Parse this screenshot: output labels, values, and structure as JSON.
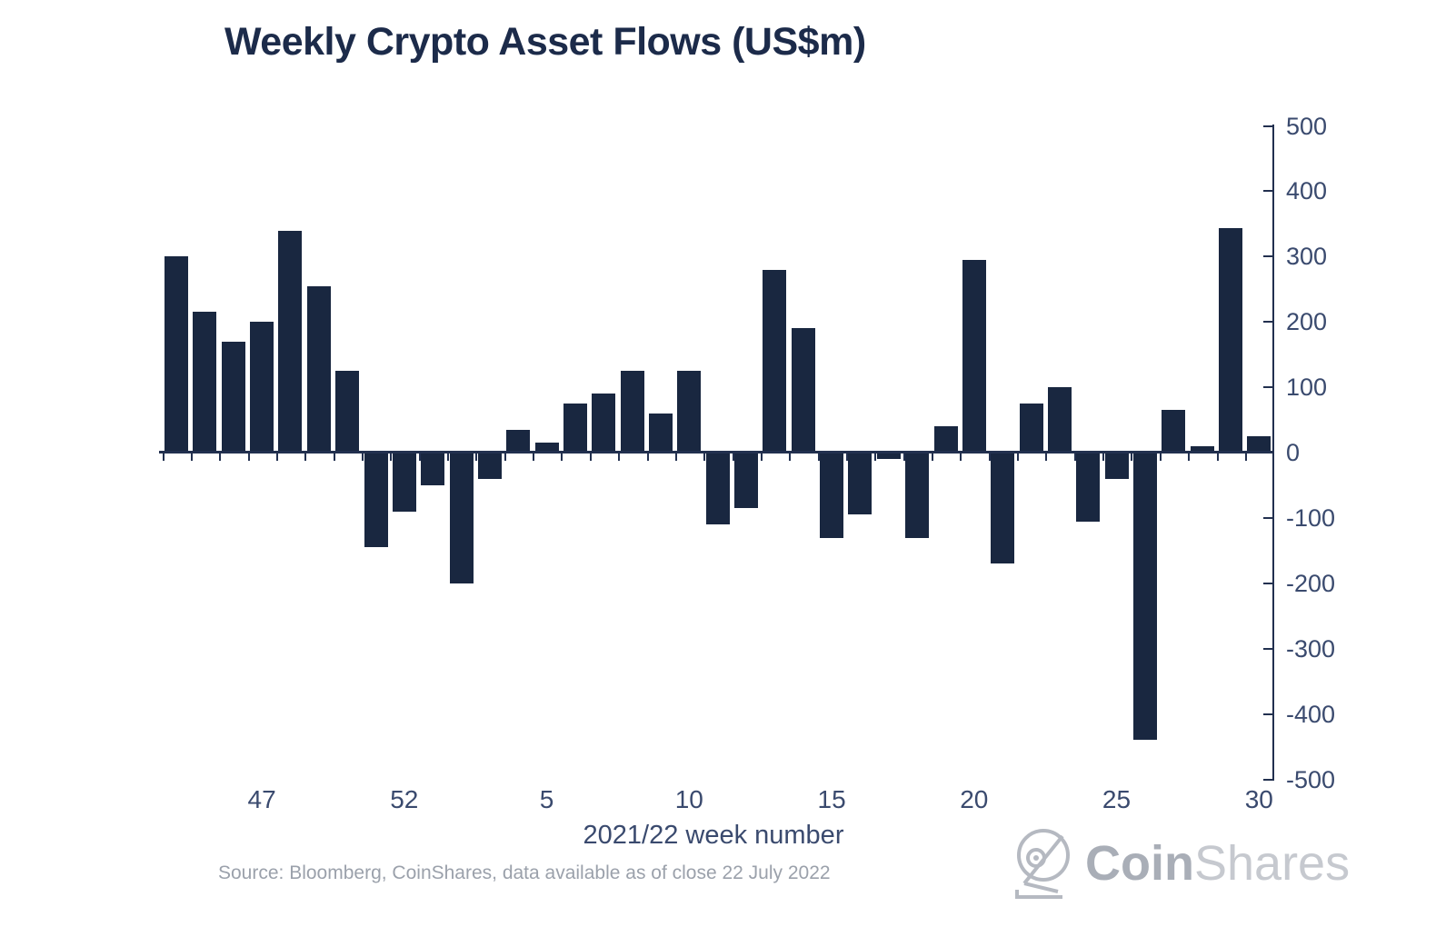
{
  "title": "Weekly Crypto Asset Flows (US$m)",
  "source_note": "Source: Bloomberg, CoinShares, data available as of close 22 July 2022",
  "logo": {
    "coin": "Coin",
    "shares": "Shares"
  },
  "colors": {
    "bar": "#192740",
    "title_text": "#1c2b4a",
    "axis": "#22304f",
    "tick_label": "#3a4a6e",
    "gray_text": "#9ba1ab",
    "logo_dark": "#a9aeb7",
    "logo_light": "#c6c9cf"
  },
  "chart_data": {
    "type": "bar",
    "title": "Weekly Crypto Asset Flows (US$m)",
    "xlabel": "2021/22 week number",
    "ylabel": "",
    "ylim": [
      -500,
      500
    ],
    "ytick_interval": 100,
    "y_tick_labels": [
      "500",
      "400",
      "300",
      "200",
      "100",
      "0",
      "-100",
      "-200",
      "-300",
      "-400",
      "-500"
    ],
    "x_tick_labels_shown": [
      "47",
      "52",
      "5",
      "10",
      "15",
      "20",
      "25",
      "30"
    ],
    "legend": "none",
    "grid": "off",
    "axis_position": "y-right, x-zero-line",
    "categories": [
      44,
      45,
      46,
      47,
      48,
      49,
      50,
      51,
      52,
      1,
      2,
      3,
      4,
      5,
      6,
      7,
      8,
      9,
      10,
      11,
      12,
      13,
      14,
      15,
      16,
      17,
      18,
      19,
      20,
      21,
      22,
      23,
      24,
      25,
      26,
      27,
      28,
      29,
      30
    ],
    "values": [
      300,
      215,
      170,
      200,
      340,
      255,
      125,
      -145,
      -90,
      -50,
      -200,
      -40,
      35,
      15,
      75,
      90,
      125,
      60,
      125,
      -110,
      -85,
      280,
      190,
      -130,
      -95,
      -10,
      -130,
      40,
      295,
      -170,
      75,
      100,
      -105,
      -40,
      -440,
      65,
      10,
      343,
      25
    ]
  }
}
